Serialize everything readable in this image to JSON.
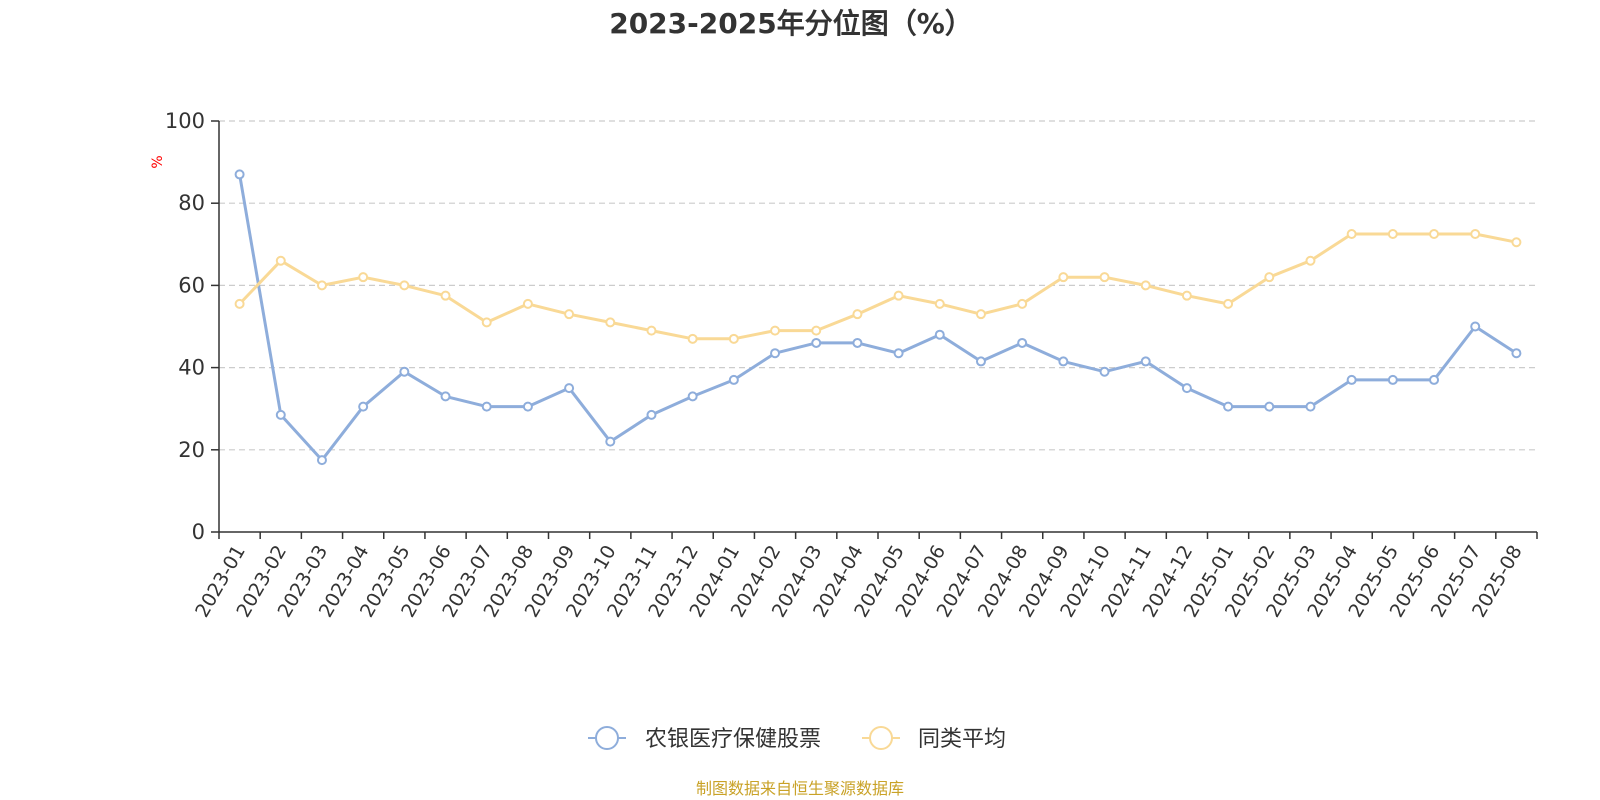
{
  "chart_data": {
    "type": "line",
    "title": "2023-2025年分位图（%）",
    "ylabel": "%",
    "xlabel": "",
    "ylim": [
      0,
      100
    ],
    "yticks": [
      0,
      20,
      40,
      60,
      80,
      100
    ],
    "grid": true,
    "legend_position": "bottom-center",
    "categories": [
      "2023-01",
      "2023-02",
      "2023-03",
      "2023-04",
      "2023-05",
      "2023-06",
      "2023-07",
      "2023-08",
      "2023-09",
      "2023-10",
      "2023-11",
      "2023-12",
      "2024-01",
      "2024-02",
      "2024-03",
      "2024-04",
      "2024-05",
      "2024-06",
      "2024-07",
      "2024-08",
      "2024-09",
      "2024-10",
      "2024-11",
      "2024-12",
      "2025-01",
      "2025-02",
      "2025-03",
      "2025-04",
      "2025-05",
      "2025-06",
      "2025-07",
      "2025-08"
    ],
    "series": [
      {
        "name": "农银医疗保健股票",
        "color": "#8eaddb",
        "values": [
          87,
          28.5,
          17.5,
          30.5,
          39,
          33,
          30.5,
          30.5,
          35,
          22,
          28.5,
          33,
          37,
          43.5,
          46,
          46,
          43.5,
          48,
          41.5,
          46,
          41.5,
          39,
          41.5,
          35,
          30.5,
          30.5,
          30.5,
          37,
          37,
          37,
          50,
          43.5
        ]
      },
      {
        "name": "同类平均",
        "color": "#f9d996",
        "values": [
          55.5,
          66,
          60,
          62,
          60,
          57.5,
          51,
          55.5,
          53,
          51,
          49,
          47,
          47,
          49,
          49,
          53,
          57.5,
          55.5,
          53,
          55.5,
          62,
          62,
          60,
          57.5,
          55.5,
          62,
          66,
          72.5,
          72.5,
          72.5,
          72.5,
          70.5
        ]
      }
    ],
    "source": "制图数据来自恒生聚源数据库"
  },
  "colors": {
    "axis": "#333333",
    "grid": "#cccccc",
    "unit_label": "#ff0000",
    "source_text": "#c9a227"
  }
}
